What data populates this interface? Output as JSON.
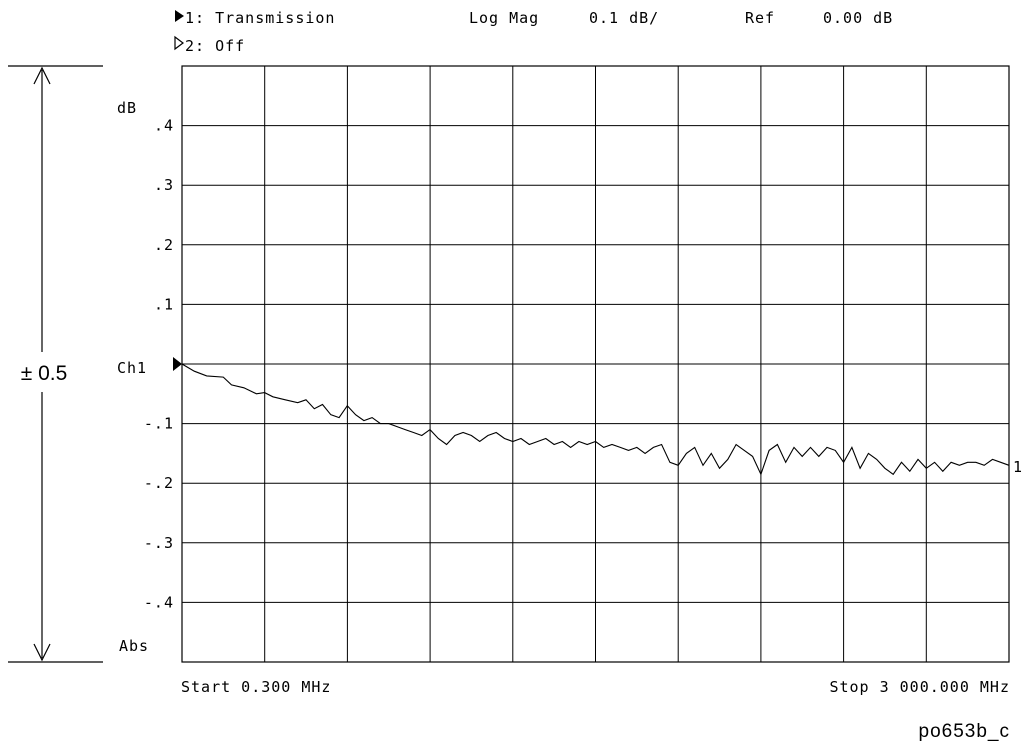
{
  "header": {
    "line1": {
      "channel": "1: Transmission",
      "format": "Log Mag",
      "scale": "0.1 dB/",
      "ref_label": "Ref",
      "ref_value": "0.00 dB"
    },
    "line2": {
      "channel": "2: Off"
    }
  },
  "figure_id": "po653b_c",
  "dimension_label": "± 0.5",
  "chart_data": {
    "type": "line",
    "ylim": [
      -0.5,
      0.5
    ],
    "y_ticks": [
      {
        "value": 0.4,
        "label": ".4"
      },
      {
        "value": 0.3,
        "label": ".3"
      },
      {
        "value": 0.2,
        "label": ".2"
      },
      {
        "value": 0.1,
        "label": ".1"
      },
      {
        "value": -0.1,
        "label": "-.1"
      },
      {
        "value": -0.2,
        "label": "-.2"
      },
      {
        "value": -0.3,
        "label": "-.3"
      },
      {
        "value": -0.4,
        "label": "-.4"
      }
    ],
    "y_unit_label": "dB",
    "ref_label": "Ch1",
    "bottom_label": "Abs",
    "x_start_label": "Start 0.300 MHz",
    "x_stop_label": "Stop 3 000.000 MHz",
    "x_range_mhz": [
      0.3,
      3000
    ],
    "grid": true,
    "x_divisions": 10,
    "y_divisions": 10,
    "series": [
      {
        "name": "1",
        "x": [
          0.3,
          45,
          90,
          150,
          180,
          225,
          270,
          300,
          330,
          375,
          420,
          450,
          480,
          510,
          540,
          570,
          600,
          630,
          660,
          690,
          720,
          750,
          780,
          810,
          840,
          870,
          900,
          930,
          960,
          990,
          1020,
          1050,
          1080,
          1110,
          1140,
          1170,
          1200,
          1230,
          1260,
          1290,
          1320,
          1350,
          1380,
          1410,
          1440,
          1470,
          1500,
          1530,
          1560,
          1590,
          1620,
          1650,
          1680,
          1710,
          1740,
          1770,
          1800,
          1830,
          1860,
          1890,
          1920,
          1950,
          1980,
          2010,
          2040,
          2070,
          2100,
          2130,
          2160,
          2190,
          2220,
          2250,
          2280,
          2310,
          2340,
          2370,
          2400,
          2430,
          2460,
          2490,
          2520,
          2550,
          2580,
          2610,
          2640,
          2670,
          2700,
          2730,
          2760,
          2790,
          2820,
          2850,
          2880,
          2910,
          2940,
          2970,
          3000
        ],
        "y": [
          0.0,
          -0.012,
          -0.02,
          -0.022,
          -0.035,
          -0.04,
          -0.05,
          -0.048,
          -0.055,
          -0.06,
          -0.065,
          -0.06,
          -0.075,
          -0.068,
          -0.085,
          -0.09,
          -0.07,
          -0.085,
          -0.095,
          -0.09,
          -0.1,
          -0.1,
          -0.105,
          -0.11,
          -0.115,
          -0.12,
          -0.11,
          -0.125,
          -0.135,
          -0.12,
          -0.115,
          -0.12,
          -0.13,
          -0.12,
          -0.115,
          -0.125,
          -0.13,
          -0.125,
          -0.135,
          -0.13,
          -0.125,
          -0.135,
          -0.13,
          -0.14,
          -0.13,
          -0.135,
          -0.13,
          -0.14,
          -0.135,
          -0.14,
          -0.145,
          -0.14,
          -0.15,
          -0.14,
          -0.135,
          -0.165,
          -0.17,
          -0.15,
          -0.14,
          -0.17,
          -0.15,
          -0.175,
          -0.16,
          -0.135,
          -0.145,
          -0.155,
          -0.185,
          -0.145,
          -0.135,
          -0.165,
          -0.14,
          -0.155,
          -0.14,
          -0.155,
          -0.14,
          -0.145,
          -0.165,
          -0.14,
          -0.175,
          -0.15,
          -0.16,
          -0.175,
          -0.185,
          -0.165,
          -0.18,
          -0.16,
          -0.175,
          -0.165,
          -0.18,
          -0.165,
          -0.17,
          -0.165,
          -0.165,
          -0.17,
          -0.16,
          -0.165,
          -0.17
        ]
      }
    ]
  }
}
